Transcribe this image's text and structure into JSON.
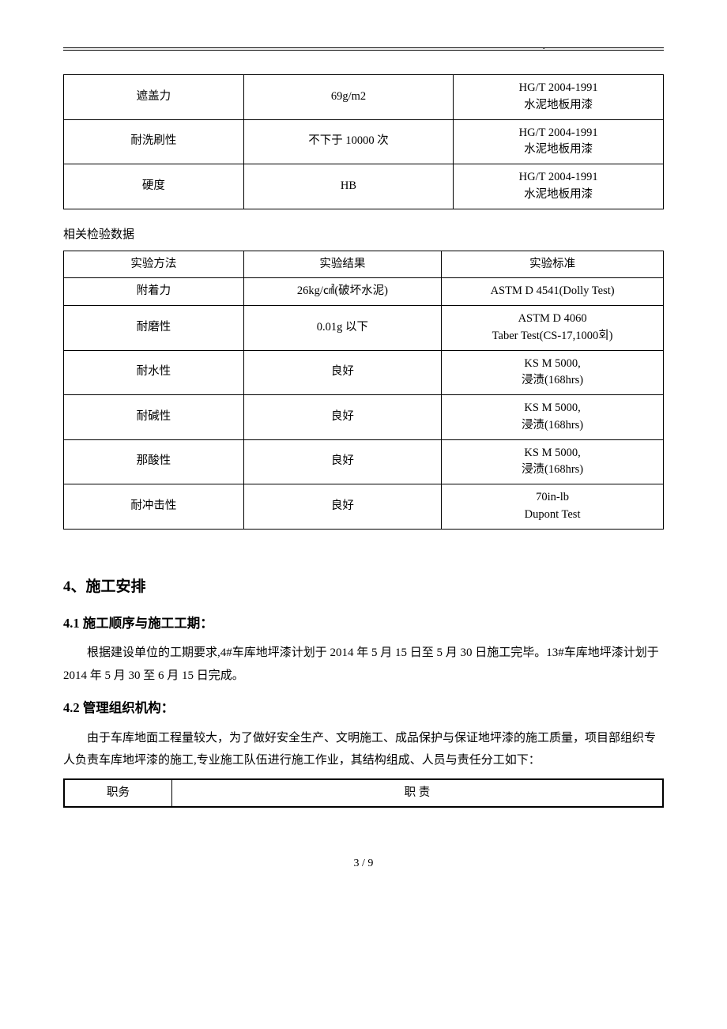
{
  "header_dot": ".",
  "table1": {
    "rows": [
      {
        "c1": "遮盖力",
        "c2": "69g/m2",
        "c3": "HG/T 2004-1991\n水泥地板用漆"
      },
      {
        "c1": "耐洗刷性",
        "c2": "不下于 10000 次",
        "c3": "HG/T 2004-1991\n水泥地板用漆"
      },
      {
        "c1": "硬度",
        "c2": "HB",
        "c3": "HG/T 2004-1991\n水泥地板用漆"
      }
    ]
  },
  "table2_caption": "相关检验数据",
  "table2": {
    "header": {
      "c1": "实验方法",
      "c2": "实验结果",
      "c3": "实验标准"
    },
    "rows": [
      {
        "c1": "附着力",
        "c2": "26kg/㎠(破坏水泥)",
        "c3": "ASTM D 4541(Dolly Test)"
      },
      {
        "c1": "耐磨性",
        "c2": "0.01g 以下",
        "c3": "ASTM D 4060\nTaber Test(CS-17,1000회)"
      },
      {
        "c1": "耐水性",
        "c2": "良好",
        "c3": "KS M 5000,\n浸渍(168hrs)"
      },
      {
        "c1": "耐碱性",
        "c2": "良好",
        "c3": "KS M 5000,\n浸渍(168hrs)"
      },
      {
        "c1": "那酸性",
        "c2": "良好",
        "c3": "KS M 5000,\n浸渍(168hrs)"
      },
      {
        "c1": "耐冲击性",
        "c2": "良好",
        "c3": "70in-lb\nDupont Test"
      }
    ]
  },
  "section4_title": "4、施工安排",
  "section4_1_title": "4.1 施工顺序与施工工期：",
  "section4_1_p1": "根据建设单位的工期要求,4#车库地坪漆计划于 2014 年 5 月 15 日至 5 月 30 日施工完毕。13#车库地坪漆计划于 2014 年 5 月 30 至 6 月 15 日完成。",
  "section4_2_title": "4.2 管理组织机构：",
  "section4_2_p1": "由于车库地面工程量较大，为了做好安全生产、文明施工、成品保护与保证地坪漆的施工质量，项目部组织专人负责车库地坪漆的施工,专业施工队伍进行施工作业，其结构组成、人员与责任分工如下：",
  "table3": {
    "header": {
      "c1": "职务",
      "c2": "职   责"
    }
  },
  "page_number": "3 / 9"
}
